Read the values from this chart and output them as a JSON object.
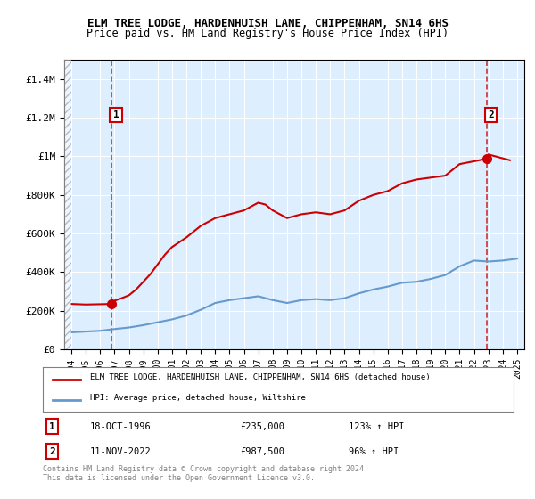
{
  "title": "ELM TREE LODGE, HARDENHUISH LANE, CHIPPENHAM, SN14 6HS",
  "subtitle": "Price paid vs. HM Land Registry's House Price Index (HPI)",
  "legend_line1": "ELM TREE LODGE, HARDENHUISH LANE, CHIPPENHAM, SN14 6HS (detached house)",
  "legend_line2": "HPI: Average price, detached house, Wiltshire",
  "footnote1": "Contains HM Land Registry data © Crown copyright and database right 2024.",
  "footnote2": "This data is licensed under the Open Government Licence v3.0.",
  "annotation1_label": "1",
  "annotation1_date": "18-OCT-1996",
  "annotation1_price": "£235,000",
  "annotation1_hpi": "123% ↑ HPI",
  "annotation2_label": "2",
  "annotation2_date": "11-NOV-2022",
  "annotation2_price": "£987,500",
  "annotation2_hpi": "96% ↑ HPI",
  "red_color": "#cc0000",
  "blue_color": "#6699cc",
  "background_color": "#ddeeff",
  "hatch_color": "#bbbbcc",
  "grid_color": "#ffffff",
  "ylim": [
    0,
    1500000
  ],
  "yticks": [
    0,
    200000,
    400000,
    600000,
    800000,
    1000000,
    1200000,
    1400000
  ],
  "ytick_labels": [
    "£0",
    "£200K",
    "£400K",
    "£600K",
    "£800K",
    "£1M",
    "£1.2M",
    "£1.4M"
  ],
  "hpi_years": [
    1994,
    1995,
    1996,
    1997,
    1998,
    1999,
    2000,
    2001,
    2002,
    2003,
    2004,
    2005,
    2006,
    2007,
    2008,
    2009,
    2010,
    2011,
    2012,
    2013,
    2014,
    2015,
    2016,
    2017,
    2018,
    2019,
    2020,
    2021,
    2022,
    2023,
    2024,
    2025
  ],
  "hpi_values": [
    88000,
    92000,
    96000,
    105000,
    113000,
    125000,
    140000,
    155000,
    175000,
    205000,
    240000,
    255000,
    265000,
    275000,
    255000,
    240000,
    255000,
    260000,
    255000,
    265000,
    290000,
    310000,
    325000,
    345000,
    350000,
    365000,
    385000,
    430000,
    460000,
    455000,
    460000,
    470000
  ],
  "red_years": [
    1994,
    1995,
    1996.8,
    1997,
    1997.5,
    1998,
    1998.5,
    1999,
    1999.5,
    2000,
    2000.5,
    2001,
    2002,
    2003,
    2004,
    2005,
    2006,
    2007,
    2007.5,
    2008,
    2008.5,
    2009,
    2010,
    2011,
    2012,
    2013,
    2014,
    2015,
    2016,
    2017,
    2018,
    2019,
    2020,
    2021,
    2022.88,
    2023,
    2023.5,
    2024,
    2024.5
  ],
  "red_values": [
    235000,
    232000,
    235000,
    252000,
    265000,
    280000,
    310000,
    350000,
    390000,
    440000,
    490000,
    530000,
    580000,
    640000,
    680000,
    700000,
    720000,
    760000,
    750000,
    720000,
    700000,
    680000,
    700000,
    710000,
    700000,
    720000,
    770000,
    800000,
    820000,
    860000,
    880000,
    890000,
    900000,
    960000,
    987500,
    1010000,
    1000000,
    990000,
    980000
  ],
  "marker1_x": 1996.8,
  "marker1_y": 235000,
  "marker2_x": 2022.88,
  "marker2_y": 987500,
  "xlim_left": 1993.5,
  "xlim_right": 2025.5,
  "xticks": [
    1994,
    1995,
    1996,
    1997,
    1998,
    1999,
    2000,
    2001,
    2002,
    2003,
    2004,
    2005,
    2006,
    2007,
    2008,
    2009,
    2010,
    2011,
    2012,
    2013,
    2014,
    2015,
    2016,
    2017,
    2018,
    2019,
    2020,
    2021,
    2022,
    2023,
    2024,
    2025
  ]
}
